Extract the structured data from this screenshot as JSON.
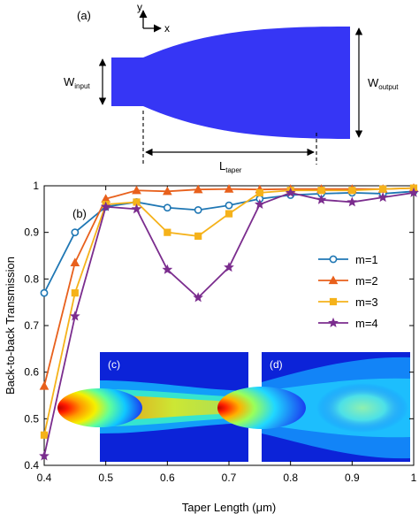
{
  "panel_a": {
    "label": "(a)",
    "axis_y": "y",
    "axis_x": "x",
    "w_input": {
      "main": "W",
      "sub": "input"
    },
    "w_output": {
      "main": "W",
      "sub": "output"
    },
    "l_taper": {
      "main": "L",
      "sub": "taper"
    },
    "taper_color": "#3636f5"
  },
  "chart_data": {
    "type": "line",
    "panel_label": "(b)",
    "xlabel": "Taper Length (μm)",
    "ylabel": "Back-to-back Transmission",
    "xlim": [
      0.4,
      1.0
    ],
    "ylim": [
      0.4,
      1.0
    ],
    "xticks": [
      "0.4",
      "0.5",
      "0.6",
      "0.7",
      "0.8",
      "0.9",
      "1"
    ],
    "yticks": [
      "0.4",
      "0.5",
      "0.6",
      "0.7",
      "0.8",
      "0.9",
      "1"
    ],
    "legend_position": "right",
    "grid": false,
    "series": [
      {
        "name": "m=1",
        "color": "#1f77b4",
        "marker": "circle",
        "x": [
          0.4,
          0.45,
          0.5,
          0.55,
          0.6,
          0.65,
          0.7,
          0.75,
          0.8,
          0.85,
          0.9,
          0.95,
          1.0
        ],
        "y": [
          0.77,
          0.9,
          0.955,
          0.965,
          0.953,
          0.948,
          0.958,
          0.972,
          0.98,
          0.983,
          0.985,
          0.983,
          0.988
        ]
      },
      {
        "name": "m=2",
        "color": "#e8601c",
        "marker": "triangle",
        "x": [
          0.4,
          0.45,
          0.5,
          0.55,
          0.6,
          0.65,
          0.7,
          0.75,
          0.8,
          0.85,
          0.9,
          0.95,
          1.0
        ],
        "y": [
          0.57,
          0.835,
          0.972,
          0.99,
          0.988,
          0.992,
          0.993,
          0.992,
          0.993,
          0.993,
          0.993,
          0.993,
          0.995
        ]
      },
      {
        "name": "m=3",
        "color": "#f5b21b",
        "marker": "square",
        "x": [
          0.4,
          0.45,
          0.5,
          0.55,
          0.6,
          0.65,
          0.7,
          0.75,
          0.8,
          0.85,
          0.9,
          0.95,
          1.0
        ],
        "y": [
          0.465,
          0.77,
          0.96,
          0.965,
          0.9,
          0.892,
          0.94,
          0.985,
          0.99,
          0.99,
          0.99,
          0.993,
          0.995
        ]
      },
      {
        "name": "m=4",
        "color": "#7b2d8e",
        "marker": "star",
        "x": [
          0.4,
          0.45,
          0.5,
          0.55,
          0.6,
          0.65,
          0.7,
          0.75,
          0.8,
          0.85,
          0.9,
          0.95,
          1.0
        ],
        "y": [
          0.42,
          0.72,
          0.955,
          0.95,
          0.82,
          0.76,
          0.825,
          0.96,
          0.985,
          0.97,
          0.965,
          0.975,
          0.985
        ]
      }
    ],
    "insets": [
      {
        "label": "(c)",
        "image": "field-intensity-map"
      },
      {
        "label": "(d)",
        "image": "field-intensity-map"
      }
    ]
  }
}
